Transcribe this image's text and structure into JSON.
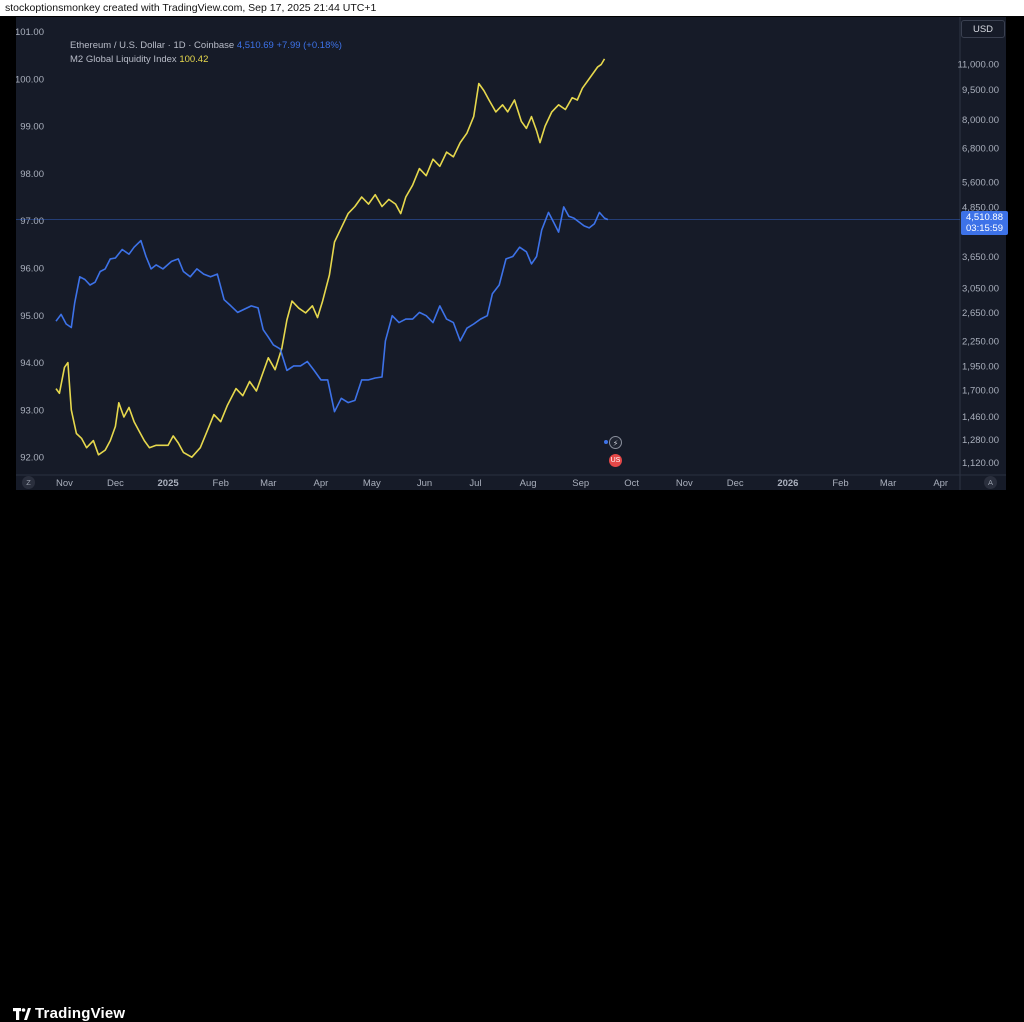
{
  "header": {
    "credit": "stockoptionsmonkey created with TradingView.com, Sep 17, 2025 21:44 UTC+1"
  },
  "legend": {
    "eth_name": "Ethereum / U.S. Dollar · 1D · Coinbase",
    "eth_price": "4,510.69",
    "eth_change": "+7.99 (+0.18%)",
    "m2_name": "M2 Global Liquidity Index",
    "m2_value": "100.42"
  },
  "currency_button": "USD",
  "price_badge": {
    "price": "4,510.88",
    "countdown": "03:15:59"
  },
  "footer": {
    "brand": "TradingView"
  },
  "buttons": {
    "left": "Z",
    "right": "A"
  },
  "events": {
    "e1": "⚡",
    "e2": "US"
  },
  "colors": {
    "eth": "#3d72e8",
    "m2": "#e6d84d",
    "background": "#161b28"
  },
  "chart_data": {
    "type": "line",
    "left_axis": {
      "ticks": [
        "92.00",
        "93.00",
        "94.00",
        "95.00",
        "96.00",
        "97.00",
        "98.00",
        "99.00",
        "100.00",
        "101.00"
      ],
      "range": [
        91.75,
        101.2
      ]
    },
    "right_axis": {
      "scale": "log",
      "ticks": [
        "1,120.00",
        "1,280.00",
        "1,460.00",
        "1,700.00",
        "1,950.00",
        "2,250.00",
        "2,650.00",
        "3,050.00",
        "3,650.00",
        "4,850.00",
        "5,600.00",
        "6,800.00",
        "8,000.00",
        "9,500.00",
        "11,000.00"
      ]
    },
    "x_labels": [
      "Nov",
      "Dec",
      "2025",
      "Feb",
      "Mar",
      "Apr",
      "May",
      "Jun",
      "Jul",
      "Aug",
      "Sep",
      "Oct",
      "Nov",
      "Dec",
      "2026",
      "Feb",
      "Mar",
      "Apr"
    ],
    "x_axis": {
      "start": "2024-10-27",
      "end": "2026-04-10"
    },
    "grid": false,
    "series": [
      {
        "name": "M2 Global Liquidity Index",
        "axis": "left",
        "color": "#e6d84d",
        "points": [
          [
            "2024-10-27",
            93.45
          ],
          [
            "2024-10-29",
            93.35
          ],
          [
            "2024-11-01",
            93.9
          ],
          [
            "2024-11-03",
            94.0
          ],
          [
            "2024-11-05",
            93.0
          ],
          [
            "2024-11-08",
            92.5
          ],
          [
            "2024-11-11",
            92.4
          ],
          [
            "2024-11-14",
            92.2
          ],
          [
            "2024-11-18",
            92.35
          ],
          [
            "2024-11-21",
            92.05
          ],
          [
            "2024-11-25",
            92.15
          ],
          [
            "2024-11-28",
            92.35
          ],
          [
            "2024-12-01",
            92.65
          ],
          [
            "2024-12-03",
            93.15
          ],
          [
            "2024-12-06",
            92.85
          ],
          [
            "2024-12-09",
            93.05
          ],
          [
            "2024-12-12",
            92.75
          ],
          [
            "2024-12-15",
            92.55
          ],
          [
            "2024-12-18",
            92.35
          ],
          [
            "2024-12-21",
            92.2
          ],
          [
            "2024-12-25",
            92.25
          ],
          [
            "2025-01-01",
            92.25
          ],
          [
            "2025-01-04",
            92.45
          ],
          [
            "2025-01-07",
            92.3
          ],
          [
            "2025-01-10",
            92.1
          ],
          [
            "2025-01-15",
            92.0
          ],
          [
            "2025-01-20",
            92.2
          ],
          [
            "2025-01-24",
            92.55
          ],
          [
            "2025-01-28",
            92.9
          ],
          [
            "2025-02-01",
            92.75
          ],
          [
            "2025-02-05",
            93.1
          ],
          [
            "2025-02-10",
            93.45
          ],
          [
            "2025-02-14",
            93.3
          ],
          [
            "2025-02-18",
            93.6
          ],
          [
            "2025-02-22",
            93.4
          ],
          [
            "2025-02-26",
            93.8
          ],
          [
            "2025-03-01",
            94.1
          ],
          [
            "2025-03-05",
            93.85
          ],
          [
            "2025-03-09",
            94.3
          ],
          [
            "2025-03-12",
            94.9
          ],
          [
            "2025-03-15",
            95.3
          ],
          [
            "2025-03-19",
            95.15
          ],
          [
            "2025-03-23",
            95.05
          ],
          [
            "2025-03-27",
            95.2
          ],
          [
            "2025-03-30",
            94.95
          ],
          [
            "2025-04-02",
            95.3
          ],
          [
            "2025-04-06",
            95.85
          ],
          [
            "2025-04-09",
            96.55
          ],
          [
            "2025-04-13",
            96.85
          ],
          [
            "2025-04-17",
            97.15
          ],
          [
            "2025-04-21",
            97.3
          ],
          [
            "2025-04-25",
            97.5
          ],
          [
            "2025-04-29",
            97.35
          ],
          [
            "2025-05-03",
            97.55
          ],
          [
            "2025-05-07",
            97.3
          ],
          [
            "2025-05-11",
            97.45
          ],
          [
            "2025-05-15",
            97.35
          ],
          [
            "2025-05-18",
            97.15
          ],
          [
            "2025-05-21",
            97.5
          ],
          [
            "2025-05-25",
            97.75
          ],
          [
            "2025-05-29",
            98.1
          ],
          [
            "2025-06-02",
            97.95
          ],
          [
            "2025-06-06",
            98.3
          ],
          [
            "2025-06-10",
            98.15
          ],
          [
            "2025-06-14",
            98.45
          ],
          [
            "2025-06-18",
            98.35
          ],
          [
            "2025-06-22",
            98.65
          ],
          [
            "2025-06-26",
            98.85
          ],
          [
            "2025-06-30",
            99.2
          ],
          [
            "2025-07-03",
            99.9
          ],
          [
            "2025-07-06",
            99.75
          ],
          [
            "2025-07-09",
            99.55
          ],
          [
            "2025-07-13",
            99.3
          ],
          [
            "2025-07-17",
            99.45
          ],
          [
            "2025-07-20",
            99.3
          ],
          [
            "2025-07-24",
            99.55
          ],
          [
            "2025-07-28",
            99.1
          ],
          [
            "2025-07-31",
            98.95
          ],
          [
            "2025-08-03",
            99.2
          ],
          [
            "2025-08-06",
            98.9
          ],
          [
            "2025-08-08",
            98.65
          ],
          [
            "2025-08-11",
            99.0
          ],
          [
            "2025-08-15",
            99.3
          ],
          [
            "2025-08-19",
            99.45
          ],
          [
            "2025-08-23",
            99.35
          ],
          [
            "2025-08-27",
            99.6
          ],
          [
            "2025-08-30",
            99.55
          ],
          [
            "2025-09-02",
            99.8
          ],
          [
            "2025-09-05",
            99.95
          ],
          [
            "2025-09-08",
            100.1
          ],
          [
            "2025-09-11",
            100.25
          ],
          [
            "2025-09-13",
            100.3
          ],
          [
            "2025-09-15",
            100.42
          ]
        ]
      },
      {
        "name": "Ethereum / U.S. Dollar · 1D · Coinbase",
        "axis": "right",
        "color": "#3d72e8",
        "points": [
          [
            "2024-10-27",
            2520
          ],
          [
            "2024-10-30",
            2620
          ],
          [
            "2024-11-02",
            2480
          ],
          [
            "2024-11-05",
            2430
          ],
          [
            "2024-11-07",
            2800
          ],
          [
            "2024-11-10",
            3250
          ],
          [
            "2024-11-13",
            3200
          ],
          [
            "2024-11-16",
            3100
          ],
          [
            "2024-11-19",
            3150
          ],
          [
            "2024-11-22",
            3350
          ],
          [
            "2024-11-25",
            3400
          ],
          [
            "2024-11-28",
            3600
          ],
          [
            "2024-12-01",
            3620
          ],
          [
            "2024-12-05",
            3800
          ],
          [
            "2024-12-09",
            3700
          ],
          [
            "2024-12-12",
            3850
          ],
          [
            "2024-12-16",
            4000
          ],
          [
            "2024-12-19",
            3650
          ],
          [
            "2024-12-22",
            3400
          ],
          [
            "2024-12-25",
            3480
          ],
          [
            "2024-12-29",
            3400
          ],
          [
            "2025-01-03",
            3550
          ],
          [
            "2025-01-07",
            3600
          ],
          [
            "2025-01-10",
            3350
          ],
          [
            "2025-01-14",
            3250
          ],
          [
            "2025-01-18",
            3400
          ],
          [
            "2025-01-22",
            3300
          ],
          [
            "2025-01-26",
            3250
          ],
          [
            "2025-01-30",
            3300
          ],
          [
            "2025-02-03",
            2850
          ],
          [
            "2025-02-07",
            2750
          ],
          [
            "2025-02-11",
            2650
          ],
          [
            "2025-02-15",
            2700
          ],
          [
            "2025-02-19",
            2750
          ],
          [
            "2025-02-23",
            2720
          ],
          [
            "2025-02-26",
            2400
          ],
          [
            "2025-03-01",
            2300
          ],
          [
            "2025-03-04",
            2200
          ],
          [
            "2025-03-08",
            2150
          ],
          [
            "2025-03-12",
            1900
          ],
          [
            "2025-03-16",
            1950
          ],
          [
            "2025-03-20",
            1950
          ],
          [
            "2025-03-24",
            2000
          ],
          [
            "2025-03-28",
            1900
          ],
          [
            "2025-04-01",
            1800
          ],
          [
            "2025-04-05",
            1800
          ],
          [
            "2025-04-09",
            1500
          ],
          [
            "2025-04-13",
            1620
          ],
          [
            "2025-04-17",
            1580
          ],
          [
            "2025-04-21",
            1600
          ],
          [
            "2025-04-25",
            1800
          ],
          [
            "2025-04-29",
            1800
          ],
          [
            "2025-05-03",
            1820
          ],
          [
            "2025-05-07",
            1830
          ],
          [
            "2025-05-09",
            2250
          ],
          [
            "2025-05-13",
            2600
          ],
          [
            "2025-05-17",
            2500
          ],
          [
            "2025-05-21",
            2550
          ],
          [
            "2025-05-25",
            2550
          ],
          [
            "2025-05-29",
            2650
          ],
          [
            "2025-06-02",
            2600
          ],
          [
            "2025-06-06",
            2500
          ],
          [
            "2025-06-10",
            2750
          ],
          [
            "2025-06-14",
            2550
          ],
          [
            "2025-06-18",
            2500
          ],
          [
            "2025-06-22",
            2250
          ],
          [
            "2025-06-26",
            2420
          ],
          [
            "2025-06-30",
            2480
          ],
          [
            "2025-07-04",
            2550
          ],
          [
            "2025-07-08",
            2600
          ],
          [
            "2025-07-11",
            2950
          ],
          [
            "2025-07-15",
            3100
          ],
          [
            "2025-07-19",
            3600
          ],
          [
            "2025-07-23",
            3650
          ],
          [
            "2025-07-27",
            3850
          ],
          [
            "2025-07-31",
            3750
          ],
          [
            "2025-08-03",
            3500
          ],
          [
            "2025-08-06",
            3650
          ],
          [
            "2025-08-09",
            4250
          ],
          [
            "2025-08-13",
            4700
          ],
          [
            "2025-08-16",
            4450
          ],
          [
            "2025-08-19",
            4200
          ],
          [
            "2025-08-22",
            4850
          ],
          [
            "2025-08-25",
            4600
          ],
          [
            "2025-08-28",
            4550
          ],
          [
            "2025-08-31",
            4450
          ],
          [
            "2025-09-03",
            4350
          ],
          [
            "2025-09-06",
            4300
          ],
          [
            "2025-09-09",
            4400
          ],
          [
            "2025-09-12",
            4700
          ],
          [
            "2025-09-15",
            4550
          ],
          [
            "2025-09-17",
            4510.69
          ]
        ]
      }
    ]
  }
}
